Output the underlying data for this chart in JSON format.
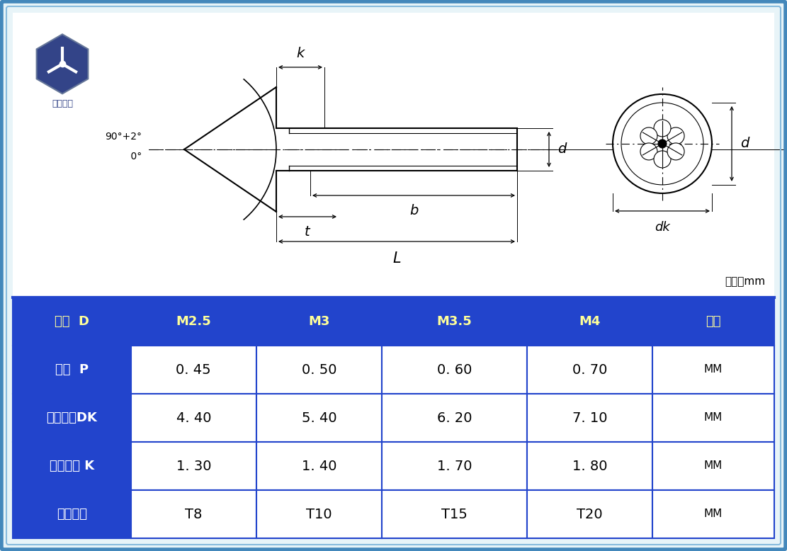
{
  "bg_outer": "#d0e8f5",
  "bg_inner": "#e8f4f8",
  "diagram_bg": "#ffffff",
  "border_outer": "#4488bb",
  "border_inner": "#88bbdd",
  "table_header_bg": "#2244cc",
  "table_header_text": "#ffff99",
  "table_label_bg": "#2244cc",
  "table_label_text": "#ffffff",
  "table_cell_bg": "#ffffff",
  "table_cell_text": "#000000",
  "table_sep_color": "#2244cc",
  "table_rows": [
    {
      "label": "直径  D",
      "values": [
        "M2.5",
        "M3",
        "M3.5",
        "M4"
      ],
      "unit": "单位",
      "is_header": true
    },
    {
      "label": "牙距  P",
      "values": [
        "0. 45",
        "0. 50",
        "0. 60",
        "0. 70"
      ],
      "unit": "MM",
      "is_header": false
    },
    {
      "label": "头部直径DK",
      "values": [
        "4. 40",
        "5. 40",
        "6. 20",
        "7. 10"
      ],
      "unit": "MM",
      "is_header": false
    },
    {
      "label": "头部厚度 K",
      "values": [
        "1. 30",
        "1. 40",
        "1. 70",
        "1. 80"
      ],
      "unit": "MM",
      "is_header": false
    },
    {
      "label": "梅花型号",
      "values": [
        "T8",
        "T10",
        "T15",
        "T20"
      ],
      "unit": "MM",
      "is_header": false
    }
  ],
  "unit_text": "单位：mm",
  "angle_label": "90°+2°\n    0°"
}
